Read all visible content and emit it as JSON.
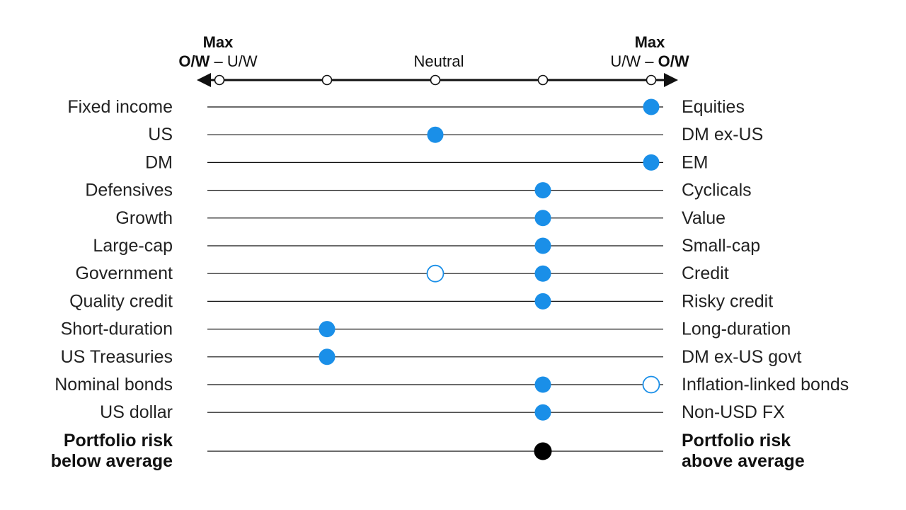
{
  "chart_data": {
    "type": "scatter",
    "scale": {
      "positions": 5,
      "left_header": {
        "title": "Max",
        "text_bold": "O/W",
        "text_sep": " – ",
        "text_plain": "U/W"
      },
      "center_header": "Neutral",
      "right_header": {
        "title": "Max",
        "text_plain": "U/W",
        "text_sep": " – ",
        "text_bold": "O/W"
      }
    },
    "rows": [
      {
        "left": "Fixed income",
        "right": "Equities",
        "current": 5,
        "previous": null
      },
      {
        "left": "US",
        "right": "DM ex-US",
        "current": 3,
        "previous": null
      },
      {
        "left": "DM",
        "right": "EM",
        "current": 5,
        "previous": null
      },
      {
        "left": "Defensives",
        "right": "Cyclicals",
        "current": 4,
        "previous": null
      },
      {
        "left": "Growth",
        "right": "Value",
        "current": 4,
        "previous": null
      },
      {
        "left": "Large-cap",
        "right": "Small-cap",
        "current": 4,
        "previous": null
      },
      {
        "left": "Government",
        "right": "Credit",
        "current": 4,
        "previous": 3
      },
      {
        "left": "Quality credit",
        "right": "Risky credit",
        "current": 4,
        "previous": null
      },
      {
        "left": "Short-duration",
        "right": "Long-duration",
        "current": 2,
        "previous": null
      },
      {
        "left": "US Treasuries",
        "right": "DM ex-US govt",
        "current": 2,
        "previous": null
      },
      {
        "left": "Nominal bonds",
        "right": "Inflation-linked bonds",
        "current": 4,
        "previous": 5
      },
      {
        "left": "US dollar",
        "right": "Non-USD FX",
        "current": 4,
        "previous": null
      }
    ],
    "summary_row": {
      "left_line1": "Portfolio risk",
      "left_line2": "below average",
      "right_line1": "Portfolio risk",
      "right_line2": "above average",
      "current": 4
    },
    "colors": {
      "current": "#1a8fe8",
      "summary": "#000000",
      "previous_stroke": "#1a8fe8",
      "line": "#111111"
    }
  }
}
